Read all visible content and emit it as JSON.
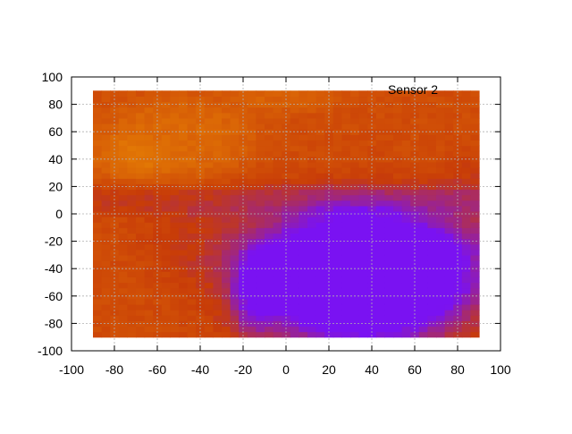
{
  "chart_data": {
    "type": "heatmap",
    "title": "",
    "legend_label": "Sensor 2",
    "legend_position": "top-right",
    "xlabel": "",
    "ylabel": "",
    "xlim": [
      -100,
      100
    ],
    "ylim": [
      -100,
      100
    ],
    "x_ticks": [
      -100,
      -80,
      -60,
      -40,
      -20,
      0,
      20,
      40,
      60,
      80,
      100
    ],
    "y_ticks": [
      -100,
      -80,
      -60,
      -40,
      -20,
      0,
      20,
      40,
      60,
      80,
      100
    ],
    "grid": true,
    "x_data_range": [
      -90,
      90
    ],
    "y_data_range": [
      -90,
      90
    ],
    "grid_cols": 45,
    "grid_rows": 45,
    "color_map": {
      "low": "#7a12f2",
      "mid": "#c83c08",
      "high": "#e88404"
    },
    "field": {
      "base_level": 0.62,
      "regions": [
        {
          "shape": "blob",
          "center": [
            35,
            -45
          ],
          "radius_x": 55,
          "radius_y": 50,
          "strength": -0.85
        },
        {
          "shape": "blob",
          "center": [
            -15,
            -60
          ],
          "radius_x": 10,
          "radius_y": 30,
          "strength": -0.25
        },
        {
          "shape": "band",
          "center": [
            0,
            10
          ],
          "radius_x": 60,
          "radius_y": 12,
          "strength": -0.15
        },
        {
          "shape": "blob",
          "center": [
            -50,
            55
          ],
          "radius_x": 35,
          "radius_y": 30,
          "strength": 0.18
        },
        {
          "shape": "blob",
          "center": [
            -75,
            40
          ],
          "radius_x": 20,
          "radius_y": 15,
          "strength": 0.12
        },
        {
          "shape": "blob",
          "center": [
            0,
            85
          ],
          "radius_x": 25,
          "radius_y": 10,
          "strength": 0.12
        },
        {
          "shape": "blob",
          "center": [
            -40,
            -20
          ],
          "radius_x": 30,
          "radius_y": 25,
          "strength": -0.08
        },
        {
          "shape": "blob",
          "center": [
            85,
            0
          ],
          "radius_x": 15,
          "radius_y": 40,
          "strength": -0.1
        }
      ]
    }
  }
}
